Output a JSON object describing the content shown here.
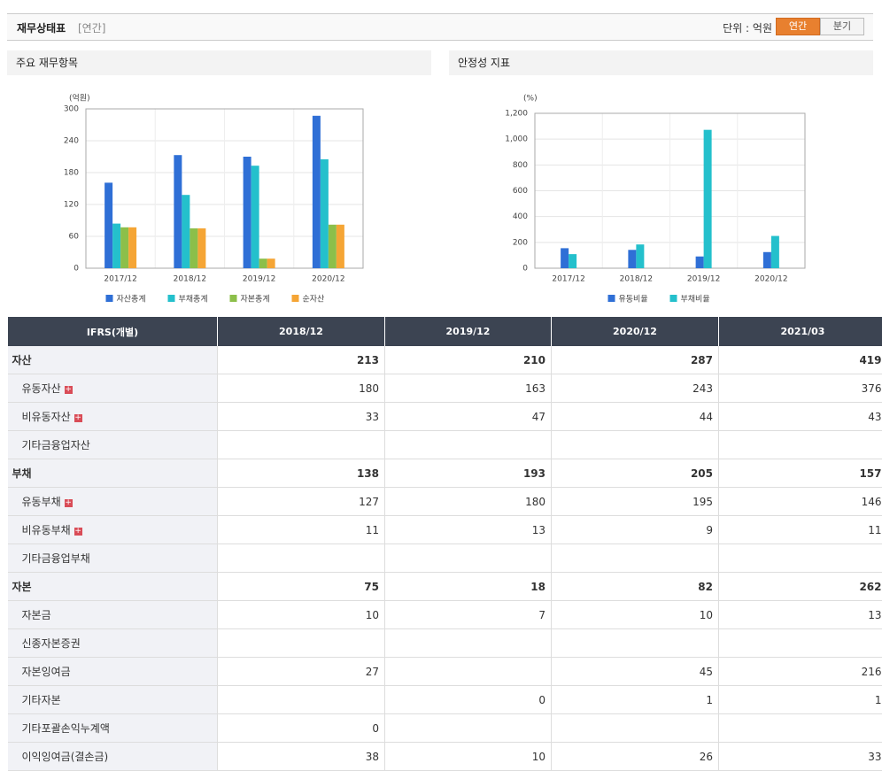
{
  "header": {
    "title": "재무상태표",
    "period": "[연간]",
    "unit": "단위 : 억원",
    "tabs": [
      "연간",
      "분기"
    ],
    "active_tab": 0
  },
  "chart_data": [
    {
      "type": "bar",
      "title": "주요 재무항목",
      "y_label": "(억원)",
      "categories": [
        "2017/12",
        "2018/12",
        "2019/12",
        "2020/12"
      ],
      "series": [
        {
          "name": "자산총계",
          "color": "#2f6fd6",
          "values": [
            161,
            213,
            210,
            287
          ]
        },
        {
          "name": "부채총계",
          "color": "#24c0cc",
          "values": [
            84,
            138,
            193,
            205
          ]
        },
        {
          "name": "자본총계",
          "color": "#8cbf4a",
          "values": [
            77,
            75,
            18,
            82
          ]
        },
        {
          "name": "순자산",
          "color": "#f5a535",
          "values": [
            77,
            75,
            18,
            82
          ]
        }
      ],
      "ylim": [
        0,
        300
      ],
      "yticks": [
        0,
        60,
        120,
        180,
        240,
        300
      ],
      "grid": true
    },
    {
      "type": "bar",
      "title": "안정성 지표",
      "y_label": "(%)",
      "categories": [
        "2017/12",
        "2018/12",
        "2019/12",
        "2020/12"
      ],
      "series": [
        {
          "name": "유동비율",
          "color": "#2f6fd6",
          "values": [
            155,
            142,
            91,
            125
          ]
        },
        {
          "name": "부채비율",
          "color": "#24c0cc",
          "values": [
            109,
            184,
            1072,
            250
          ]
        }
      ],
      "ylim": [
        0,
        1200
      ],
      "yticks": [
        0,
        200,
        400,
        600,
        800,
        {
          "value": 1000,
          "label": "1,000"
        },
        {
          "value": 1200,
          "label": "1,200"
        }
      ],
      "grid": true
    }
  ],
  "table": {
    "columns": [
      "IFRS(개별)",
      "2018/12",
      "2019/12",
      "2020/12",
      "2021/03"
    ],
    "rows": [
      {
        "label": "자산",
        "bold": true,
        "values": [
          213,
          210,
          287,
          419
        ]
      },
      {
        "label": "유동자산",
        "expandable": true,
        "values": [
          180,
          163,
          243,
          376
        ]
      },
      {
        "label": "비유동자산",
        "expandable": true,
        "values": [
          33,
          47,
          44,
          43
        ]
      },
      {
        "label": "기타금융업자산",
        "values": [
          null,
          null,
          null,
          null
        ]
      },
      {
        "label": "부채",
        "bold": true,
        "values": [
          138,
          193,
          205,
          157
        ]
      },
      {
        "label": "유동부채",
        "expandable": true,
        "values": [
          127,
          180,
          195,
          146
        ]
      },
      {
        "label": "비유동부채",
        "expandable": true,
        "values": [
          11,
          13,
          9,
          11
        ]
      },
      {
        "label": "기타금융업부채",
        "values": [
          null,
          null,
          null,
          null
        ]
      },
      {
        "label": "자본",
        "bold": true,
        "values": [
          75,
          18,
          82,
          262
        ]
      },
      {
        "label": "자본금",
        "values": [
          10,
          7,
          10,
          13
        ]
      },
      {
        "label": "신종자본증권",
        "values": [
          null,
          null,
          null,
          null
        ]
      },
      {
        "label": "자본잉여금",
        "values": [
          27,
          null,
          45,
          216
        ]
      },
      {
        "label": "기타자본",
        "values": [
          null,
          0,
          1,
          1
        ]
      },
      {
        "label": "기타포괄손익누계액",
        "values": [
          0,
          null,
          null,
          null
        ]
      },
      {
        "label": "이익잉여금(결손금)",
        "values": [
          38,
          10,
          26,
          33
        ]
      }
    ]
  }
}
